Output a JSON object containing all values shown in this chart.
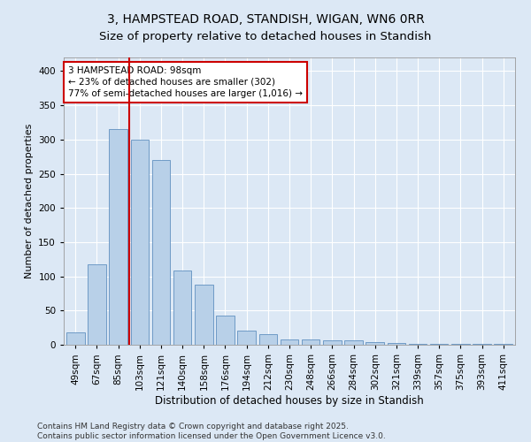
{
  "title1": "3, HAMPSTEAD ROAD, STANDISH, WIGAN, WN6 0RR",
  "title2": "Size of property relative to detached houses in Standish",
  "xlabel": "Distribution of detached houses by size in Standish",
  "ylabel": "Number of detached properties",
  "categories": [
    "49sqm",
    "67sqm",
    "85sqm",
    "103sqm",
    "121sqm",
    "140sqm",
    "158sqm",
    "176sqm",
    "194sqm",
    "212sqm",
    "230sqm",
    "248sqm",
    "266sqm",
    "284sqm",
    "302sqm",
    "321sqm",
    "339sqm",
    "357sqm",
    "375sqm",
    "393sqm",
    "411sqm"
  ],
  "values": [
    18,
    118,
    315,
    300,
    270,
    109,
    88,
    43,
    21,
    15,
    8,
    8,
    6,
    6,
    4,
    2,
    1,
    1,
    1,
    1,
    1
  ],
  "bar_color": "#b8d0e8",
  "bar_edge_color": "#6090c0",
  "vline_color": "#cc0000",
  "annotation_text": "3 HAMPSTEAD ROAD: 98sqm\n← 23% of detached houses are smaller (302)\n77% of semi-detached houses are larger (1,016) →",
  "annotation_box_color": "#ffffff",
  "annotation_box_edge": "#cc0000",
  "ylim": [
    0,
    420
  ],
  "yticks": [
    0,
    50,
    100,
    150,
    200,
    250,
    300,
    350,
    400
  ],
  "bg_color": "#dce8f5",
  "plot_bg_color": "#dce8f5",
  "footer_text": "Contains HM Land Registry data © Crown copyright and database right 2025.\nContains public sector information licensed under the Open Government Licence v3.0.",
  "title1_fontsize": 10,
  "title2_fontsize": 9.5,
  "xlabel_fontsize": 8.5,
  "ylabel_fontsize": 8,
  "tick_fontsize": 7.5,
  "annotation_fontsize": 7.5,
  "footer_fontsize": 6.5
}
